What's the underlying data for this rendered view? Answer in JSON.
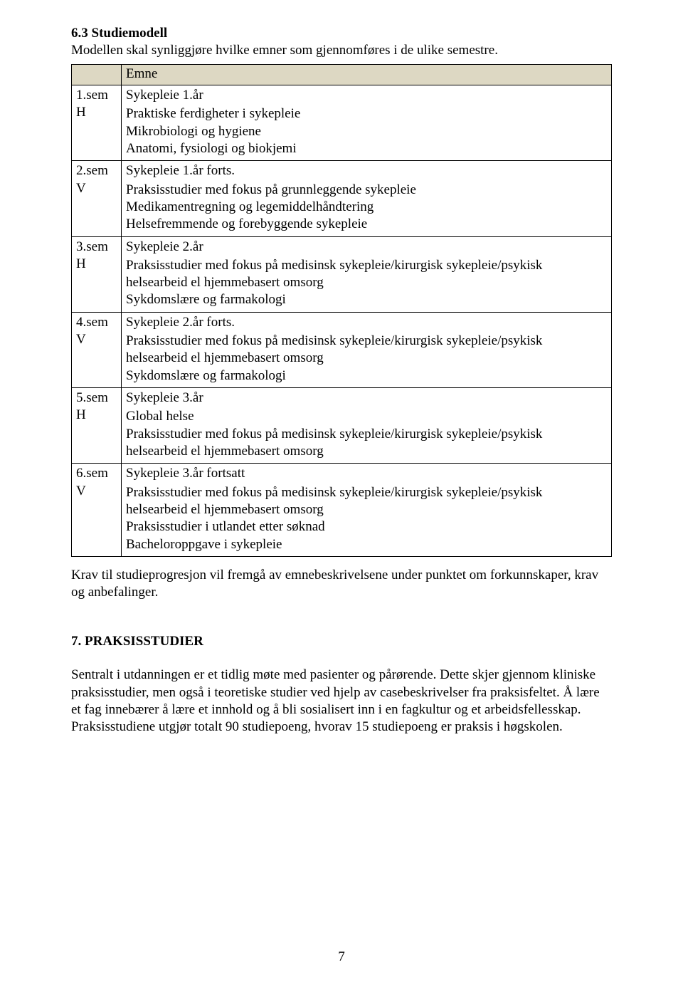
{
  "colors": {
    "header_bg": "#ddd8c3",
    "border": "#000000",
    "text": "#000000",
    "page_bg": "#ffffff"
  },
  "font": {
    "family": "Times New Roman",
    "base_size_pt": 12
  },
  "section": {
    "title": "6.3 Studiemodell",
    "intro": "Modellen skal synliggjøre hvilke emner som gjennomføres i de ulike semestre."
  },
  "table": {
    "header": {
      "left": "",
      "right": "Emne"
    },
    "rows": [
      {
        "sem": "1.sem\nH",
        "lines": [
          "Sykepleie 1.år",
          "Praktiske ferdigheter i sykepleie",
          "Mikrobiologi og hygiene",
          "Anatomi, fysiologi og biokjemi"
        ]
      },
      {
        "sem": "2.sem\nV",
        "lines": [
          "Sykepleie 1.år forts.",
          "Praksisstudier med fokus på grunnleggende sykepleie",
          "Medikamentregning og legemiddelhåndtering",
          "Helsefremmende og forebyggende sykepleie"
        ]
      },
      {
        "sem": "3.sem\nH",
        "lines": [
          "Sykepleie 2.år",
          "Praksisstudier med fokus på medisinsk sykepleie/kirurgisk sykepleie/psykisk helsearbeid el hjemmebasert omsorg",
          "Sykdomslære og farmakologi"
        ]
      },
      {
        "sem": "4.sem\nV",
        "lines": [
          "Sykepleie 2.år forts.",
          "Praksisstudier med fokus på medisinsk sykepleie/kirurgisk sykepleie/psykisk helsearbeid el hjemmebasert omsorg",
          "Sykdomslære og farmakologi"
        ]
      },
      {
        "sem": "5.sem\nH",
        "lines": [
          "Sykepleie 3.år",
          "Global helse",
          "Praksisstudier med fokus på medisinsk sykepleie/kirurgisk sykepleie/psykisk helsearbeid el hjemmebasert omsorg"
        ]
      },
      {
        "sem": "6.sem\nV",
        "lines": [
          "Sykepleie 3.år fortsatt",
          "Praksisstudier med fokus på medisinsk sykepleie/kirurgisk sykepleie/psykisk helsearbeid el hjemmebasert omsorg",
          "Praksisstudier i utlandet etter søknad",
          "Bacheloroppgave i sykepleie"
        ]
      }
    ]
  },
  "after_table": "Krav til studieprogresjon vil fremgå av emnebeskrivelsene under punktet om forkunnskaper, krav og anbefalinger.",
  "section7": {
    "title": "7.  PRAKSISSTUDIER",
    "para": "Sentralt i utdanningen er et tidlig møte med pasienter og pårørende. Dette skjer gjennom kliniske praksisstudier, men også i teoretiske studier ved hjelp av casebeskrivelser fra praksisfeltet. Å lære et fag innebærer å lære et innhold og å bli sosialisert inn i en fagkultur og et arbeidsfellesskap. Praksisstudiene utgjør totalt 90 studiepoeng, hvorav 15 studiepoeng er praksis i høgskolen."
  },
  "page_number": "7"
}
